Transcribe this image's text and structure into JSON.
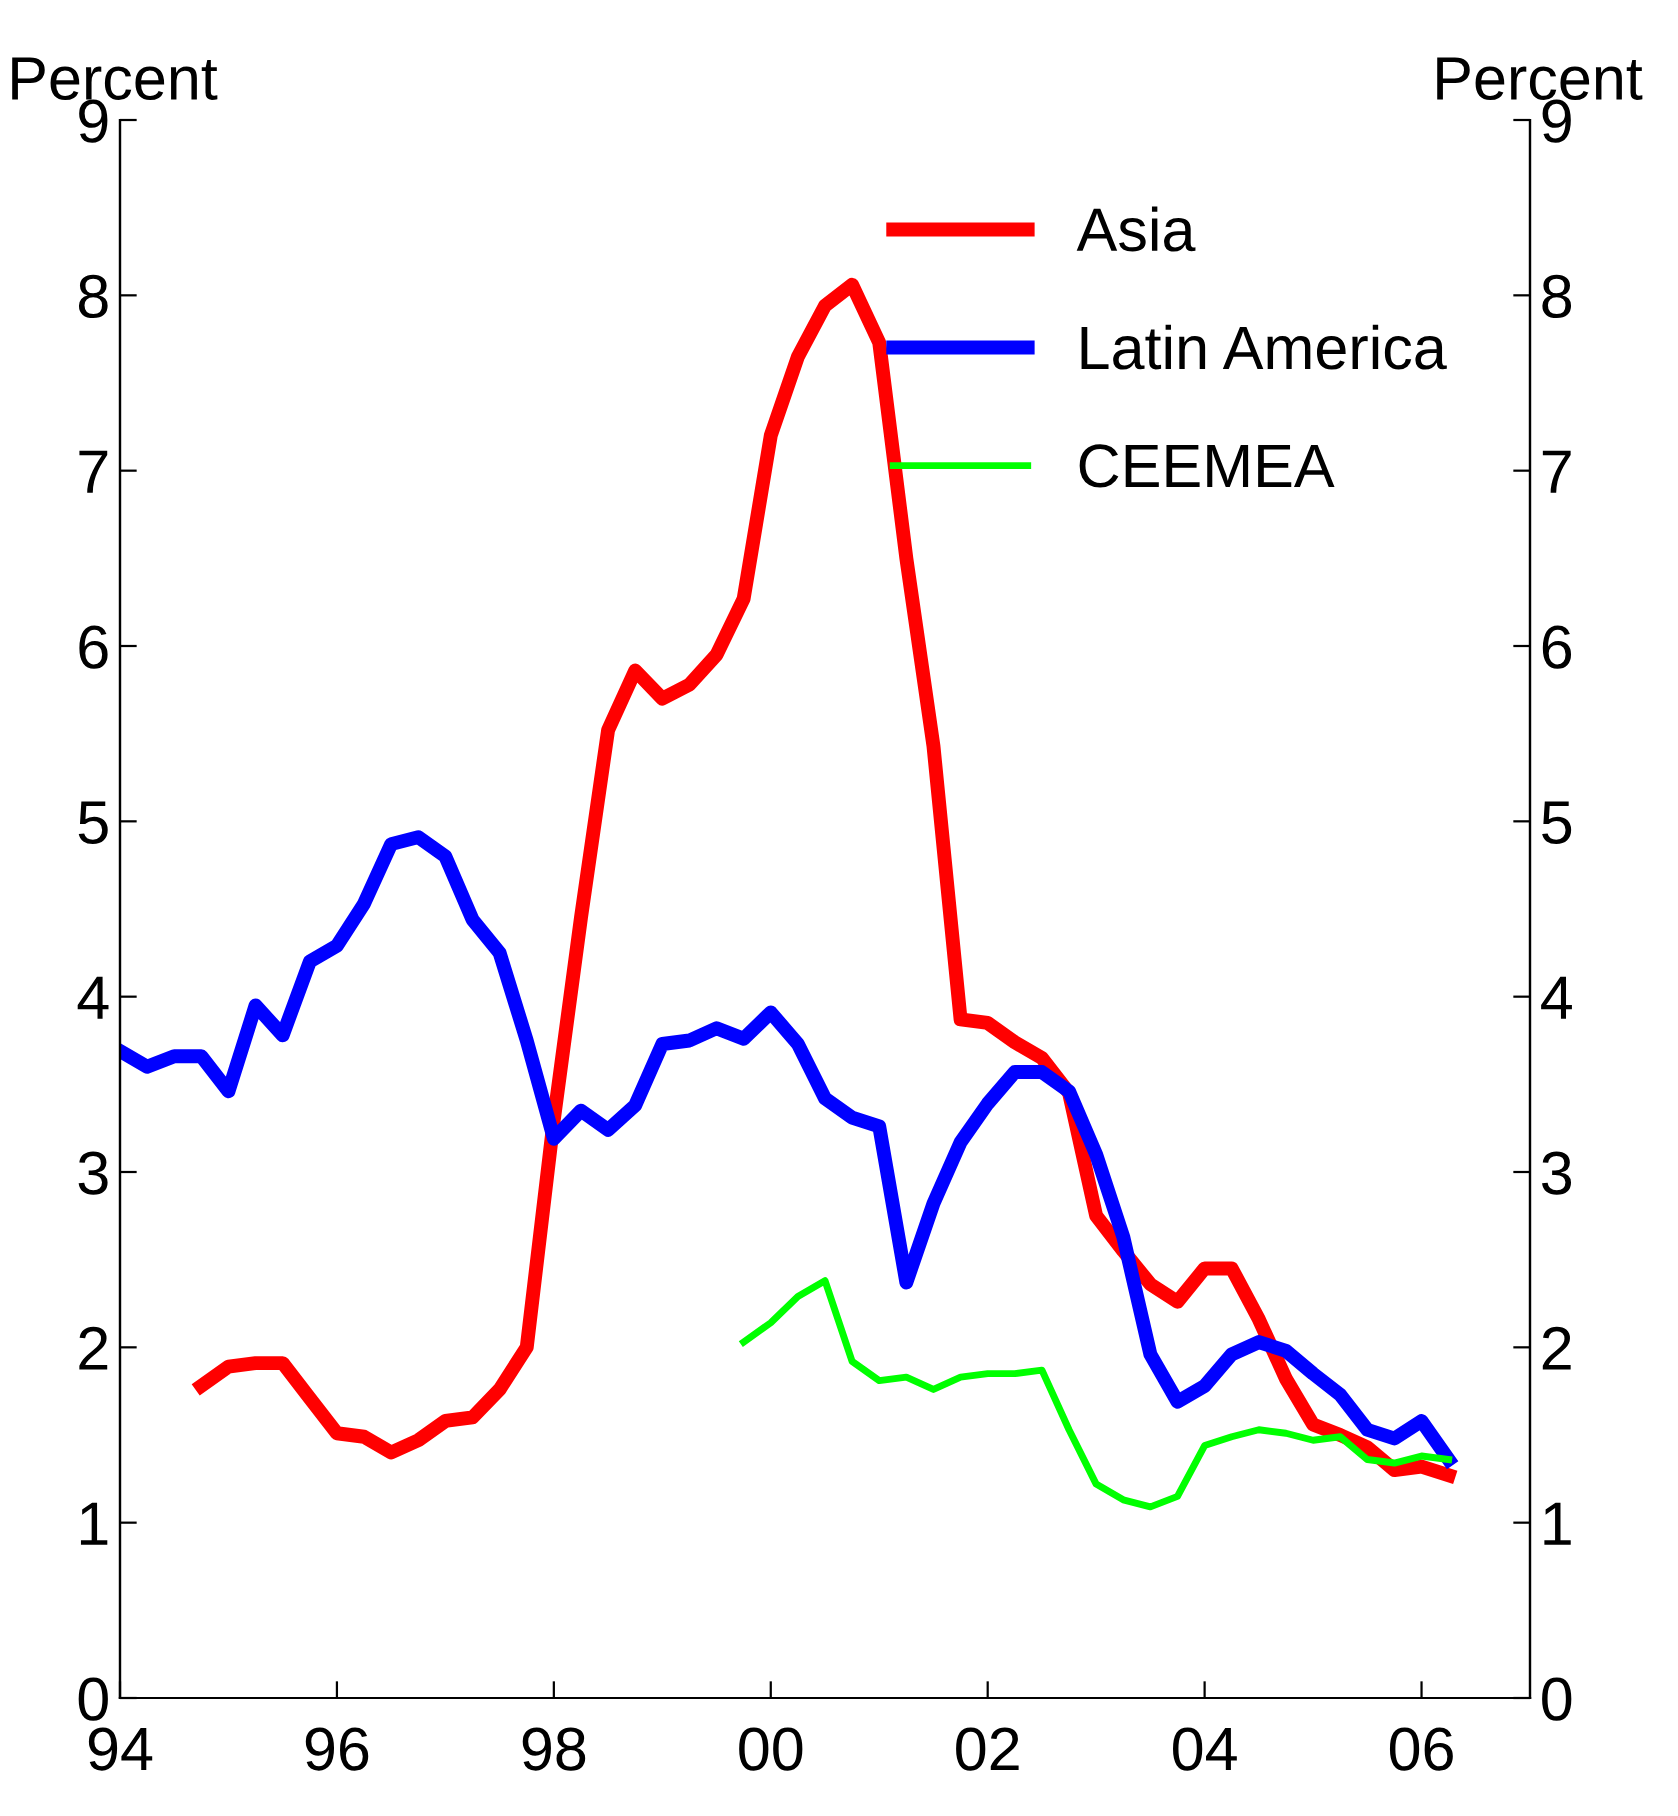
{
  "chart_data": {
    "type": "line",
    "ylabel": "Percent",
    "y2label": "Percent",
    "xlim": [
      1994,
      2007
    ],
    "xticks": [
      {
        "value": 1994,
        "label": "94"
      },
      {
        "value": 1996,
        "label": "96"
      },
      {
        "value": 1998,
        "label": "98"
      },
      {
        "value": 2000,
        "label": "00"
      },
      {
        "value": 2002,
        "label": "02"
      },
      {
        "value": 2004,
        "label": "04"
      },
      {
        "value": 2006,
        "label": "06"
      }
    ],
    "ylim": [
      0,
      9
    ],
    "yticks": [
      0,
      1,
      2,
      3,
      4,
      5,
      6,
      7,
      8,
      9
    ],
    "y2lim": [
      0,
      9
    ],
    "y2ticks": [
      0,
      1,
      2,
      3,
      4,
      5,
      6,
      7,
      8,
      9
    ],
    "grid": false,
    "legend": "top right",
    "marker": "none",
    "line_style": "solid",
    "series": [
      {
        "name": "Asia",
        "color": "#ff0000",
        "x": [
          1994.75,
          1995,
          1995.25,
          1995.5,
          1995.75,
          1996,
          1996.25,
          1996.5,
          1996.75,
          1997,
          1997.25,
          1997.5,
          1997.75,
          1998,
          1998.25,
          1998.5,
          1998.75,
          1999,
          1999.25,
          1999.5,
          1999.75,
          2000,
          2000.25,
          2000.5,
          2000.75,
          2001,
          2001.25,
          2001.5,
          2001.75,
          2002,
          2002.25,
          2002.5,
          2002.75,
          2003,
          2003.25,
          2003.5,
          2003.75,
          2004,
          2004.25,
          2004.5,
          2004.75,
          2005,
          2005.25,
          2005.5,
          2005.75,
          2006,
          2006.25
        ],
        "values": [
          1.78,
          1.89,
          1.91,
          1.91,
          1.71,
          1.51,
          1.49,
          1.4,
          1.47,
          1.58,
          1.6,
          1.76,
          2.0,
          3.3,
          4.45,
          5.52,
          5.86,
          5.7,
          5.78,
          5.95,
          6.27,
          7.2,
          7.65,
          7.94,
          8.06,
          7.73,
          6.5,
          5.43,
          3.87,
          3.85,
          3.74,
          3.65,
          3.45,
          2.75,
          2.55,
          2.36,
          2.26,
          2.45,
          2.45,
          2.16,
          1.82,
          1.56,
          1.5,
          1.43,
          1.3,
          1.32,
          1.27
        ]
      },
      {
        "name": "Latin America",
        "color": "#0000ff",
        "x": [
          1994,
          1994.25,
          1994.5,
          1994.75,
          1995,
          1995.25,
          1995.5,
          1995.75,
          1996,
          1996.25,
          1996.5,
          1996.75,
          1997,
          1997.25,
          1997.5,
          1997.75,
          1998,
          1998.25,
          1998.5,
          1998.75,
          1999,
          1999.25,
          1999.5,
          1999.75,
          2000,
          2000.25,
          2000.5,
          2000.75,
          2001,
          2001.25,
          2001.5,
          2001.75,
          2002,
          2002.25,
          2002.5,
          2002.75,
          2003,
          2003.25,
          2003.5,
          2003.75,
          2004,
          2004.25,
          2004.5,
          2004.75,
          2005,
          2005.25,
          2005.5,
          2005.75,
          2006,
          2006.25
        ],
        "values": [
          3.69,
          3.6,
          3.66,
          3.66,
          3.46,
          3.95,
          3.78,
          4.2,
          4.29,
          4.53,
          4.87,
          4.91,
          4.8,
          4.44,
          4.25,
          3.75,
          3.19,
          3.35,
          3.24,
          3.38,
          3.73,
          3.75,
          3.82,
          3.76,
          3.91,
          3.73,
          3.42,
          3.31,
          3.26,
          2.37,
          2.82,
          3.17,
          3.39,
          3.57,
          3.57,
          3.46,
          3.1,
          2.63,
          1.96,
          1.69,
          1.78,
          1.96,
          2.03,
          1.98,
          1.85,
          1.73,
          1.53,
          1.48,
          1.58,
          1.36
        ]
      },
      {
        "name": "CEEMEA",
        "color": "#00ff00",
        "x": [
          1999.75,
          2000,
          2000.25,
          2000.5,
          2000.75,
          2001,
          2001.25,
          2001.5,
          2001.75,
          2002,
          2002.25,
          2002.5,
          2002.75,
          2003,
          2003.25,
          2003.5,
          2003.75,
          2004,
          2004.25,
          2004.5,
          2004.75,
          2005,
          2005.25,
          2005.5,
          2005.75,
          2006,
          2006.25
        ],
        "values": [
          2.03,
          2.14,
          2.29,
          2.38,
          1.92,
          1.81,
          1.83,
          1.76,
          1.83,
          1.85,
          1.85,
          1.87,
          1.53,
          1.22,
          1.13,
          1.09,
          1.15,
          1.44,
          1.49,
          1.53,
          1.51,
          1.47,
          1.49,
          1.36,
          1.34,
          1.38,
          1.36
        ]
      }
    ]
  }
}
